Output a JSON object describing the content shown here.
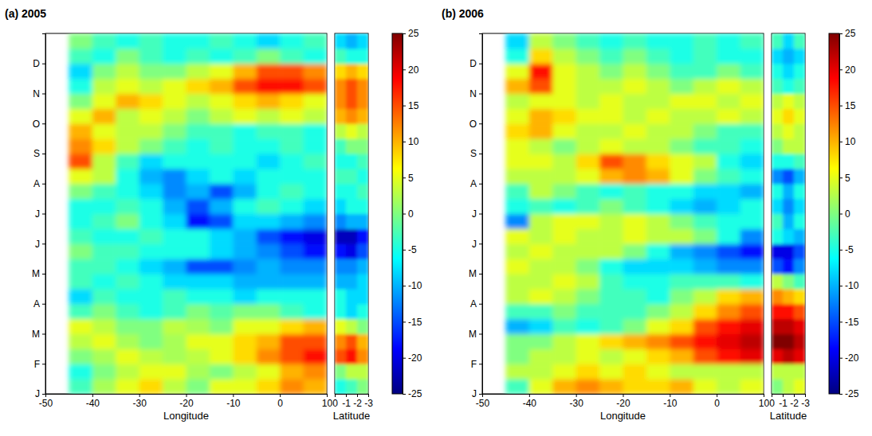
{
  "chart_data": [
    {
      "type": "heatmap",
      "title": "(a) 2005",
      "x_label": "Longitude",
      "x": [
        -42.5,
        -37.5,
        -32.5,
        -27.5,
        -22.5,
        -17.5,
        -12.5,
        -7.5,
        -2.5,
        2.5,
        7.5
      ],
      "y": [
        0.25,
        0.75,
        1.25,
        1.75,
        2.25,
        2.75,
        3.25,
        3.75,
        4.25,
        4.75,
        5.25,
        5.75,
        6.25,
        6.75,
        7.25,
        7.75,
        8.25,
        8.75,
        9.25,
        9.75,
        10.25,
        10.75,
        11.25,
        11.75
      ],
      "xlim": [
        -50,
        10
      ],
      "xticks": [
        -50,
        -40,
        -30,
        -20,
        -10,
        0,
        10
      ],
      "ylim": [
        0,
        12
      ],
      "yticks": [
        {
          "value": 0,
          "label": "J"
        },
        {
          "value": 1,
          "label": "F"
        },
        {
          "value": 2,
          "label": "M"
        },
        {
          "value": 3,
          "label": "A"
        },
        {
          "value": 4,
          "label": "M"
        },
        {
          "value": 5,
          "label": "J"
        },
        {
          "value": 6,
          "label": "J"
        },
        {
          "value": 7,
          "label": "A"
        },
        {
          "value": 8,
          "label": "S"
        },
        {
          "value": 9,
          "label": "O"
        },
        {
          "value": 10,
          "label": "N"
        },
        {
          "value": 11,
          "label": "D"
        }
      ],
      "cells": [
        [
          -3,
          2,
          5,
          8,
          3,
          0,
          5,
          5,
          8,
          12,
          10
        ],
        [
          -5,
          0,
          3,
          5,
          5,
          2,
          0,
          3,
          5,
          10,
          12
        ],
        [
          0,
          2,
          5,
          3,
          2,
          3,
          5,
          8,
          12,
          15,
          18
        ],
        [
          3,
          5,
          2,
          0,
          2,
          5,
          5,
          8,
          10,
          15,
          15
        ],
        [
          5,
          3,
          0,
          0,
          3,
          2,
          0,
          5,
          5,
          8,
          10
        ],
        [
          -3,
          0,
          -3,
          -5,
          -3,
          0,
          -2,
          0,
          0,
          -3,
          -5
        ],
        [
          -8,
          -3,
          -5,
          -5,
          -3,
          -5,
          -5,
          -8,
          -5,
          -5,
          -5
        ],
        [
          -3,
          -5,
          -3,
          -5,
          -8,
          -8,
          -8,
          -10,
          -10,
          -10,
          -10
        ],
        [
          -3,
          -3,
          -5,
          -8,
          -10,
          -15,
          -15,
          -12,
          -10,
          -12,
          -12
        ],
        [
          0,
          -3,
          -3,
          -5,
          -5,
          -5,
          -8,
          -10,
          -12,
          -15,
          -18
        ],
        [
          -3,
          -5,
          -5,
          -3,
          -5,
          -5,
          -8,
          -10,
          -15,
          -18,
          -20
        ],
        [
          -5,
          -3,
          0,
          -5,
          -8,
          -18,
          -15,
          -8,
          -8,
          -10,
          -12
        ],
        [
          -5,
          -5,
          -3,
          -5,
          -10,
          -15,
          -10,
          -5,
          -3,
          -5,
          -8
        ],
        [
          0,
          -3,
          -5,
          -8,
          -12,
          -10,
          -15,
          -10,
          -5,
          -3,
          -5
        ],
        [
          5,
          3,
          -5,
          -10,
          -12,
          -8,
          -5,
          -8,
          -5,
          -5,
          -5
        ],
        [
          15,
          3,
          -3,
          -8,
          -5,
          -5,
          -5,
          -5,
          -8,
          -5,
          -3
        ],
        [
          12,
          8,
          3,
          0,
          -3,
          -5,
          -3,
          -5,
          -5,
          -3,
          -5
        ],
        [
          10,
          5,
          3,
          3,
          0,
          -3,
          -3,
          -5,
          -3,
          -3,
          -5
        ],
        [
          5,
          10,
          3,
          5,
          3,
          0,
          3,
          5,
          3,
          5,
          3
        ],
        [
          0,
          5,
          10,
          8,
          5,
          3,
          5,
          8,
          10,
          8,
          5
        ],
        [
          -5,
          3,
          5,
          3,
          5,
          8,
          10,
          15,
          18,
          18,
          15
        ],
        [
          -8,
          0,
          3,
          0,
          0,
          3,
          5,
          10,
          15,
          15,
          12
        ],
        [
          -3,
          -5,
          0,
          -3,
          -5,
          -3,
          -5,
          -3,
          0,
          -3,
          -5
        ],
        [
          0,
          -3,
          -5,
          -3,
          -5,
          -5,
          -3,
          -5,
          -8,
          -5,
          -3
        ]
      ],
      "inset": {
        "type": "heatmap",
        "x_label": "Latitude",
        "x": [
          -0.5,
          -1.5,
          -2.5
        ],
        "xlim": [
          0,
          -3
        ],
        "xticks": [
          0,
          -1,
          -2,
          -3
        ],
        "cells": [
          [
            -5,
            -3,
            0
          ],
          [
            0,
            3,
            3
          ],
          [
            15,
            18,
            12
          ],
          [
            12,
            15,
            10
          ],
          [
            5,
            3,
            0
          ],
          [
            -5,
            -8,
            -5
          ],
          [
            -5,
            -8,
            -8
          ],
          [
            -10,
            -10,
            -8
          ],
          [
            -12,
            -12,
            -10
          ],
          [
            -18,
            -20,
            -15
          ],
          [
            -22,
            -22,
            -18
          ],
          [
            -12,
            -10,
            -10
          ],
          [
            -8,
            -5,
            -5
          ],
          [
            -5,
            -5,
            -3
          ],
          [
            -3,
            -3,
            -5
          ],
          [
            -5,
            -5,
            -3
          ],
          [
            -3,
            0,
            0
          ],
          [
            3,
            5,
            3
          ],
          [
            10,
            12,
            10
          ],
          [
            12,
            15,
            12
          ],
          [
            12,
            15,
            12
          ],
          [
            8,
            10,
            8
          ],
          [
            -3,
            -5,
            -5
          ],
          [
            -8,
            -10,
            -8
          ]
        ]
      },
      "colorbar": {
        "range": [
          -25,
          25
        ],
        "ticks": [
          -25,
          -20,
          -15,
          -10,
          -5,
          0,
          5,
          10,
          15,
          20,
          25
        ]
      }
    },
    {
      "type": "heatmap",
      "title": "(b) 2006",
      "x_label": "Longitude",
      "x": [
        -42.5,
        -37.5,
        -32.5,
        -27.5,
        -22.5,
        -17.5,
        -12.5,
        -7.5,
        -2.5,
        2.5,
        7.5
      ],
      "y": [
        0.25,
        0.75,
        1.25,
        1.75,
        2.25,
        2.75,
        3.25,
        3.75,
        4.25,
        4.75,
        5.25,
        5.75,
        6.25,
        6.75,
        7.25,
        7.75,
        8.25,
        8.75,
        9.25,
        9.75,
        10.25,
        10.75,
        11.25,
        11.75
      ],
      "xlim": [
        -50,
        10
      ],
      "xticks": [
        -50,
        -40,
        -30,
        -20,
        -10,
        0,
        10
      ],
      "ylim": [
        0,
        12
      ],
      "yticks": [
        {
          "value": 0,
          "label": "J"
        },
        {
          "value": 1,
          "label": "F"
        },
        {
          "value": 2,
          "label": "M"
        },
        {
          "value": 3,
          "label": "A"
        },
        {
          "value": 4,
          "label": "M"
        },
        {
          "value": 5,
          "label": "J"
        },
        {
          "value": 6,
          "label": "J"
        },
        {
          "value": 7,
          "label": "A"
        },
        {
          "value": 8,
          "label": "S"
        },
        {
          "value": 9,
          "label": "O"
        },
        {
          "value": 10,
          "label": "N"
        },
        {
          "value": 11,
          "label": "D"
        }
      ],
      "cells": [
        [
          -3,
          5,
          10,
          12,
          10,
          8,
          8,
          10,
          5,
          3,
          5
        ],
        [
          3,
          3,
          5,
          8,
          5,
          8,
          5,
          3,
          3,
          3,
          3
        ],
        [
          0,
          3,
          3,
          5,
          3,
          5,
          8,
          10,
          15,
          18,
          20
        ],
        [
          0,
          0,
          3,
          5,
          8,
          10,
          12,
          15,
          18,
          20,
          22
        ],
        [
          -10,
          -8,
          -3,
          -5,
          -3,
          0,
          5,
          8,
          15,
          18,
          20
        ],
        [
          -3,
          -3,
          0,
          -3,
          -3,
          -3,
          0,
          3,
          8,
          12,
          15
        ],
        [
          3,
          5,
          3,
          0,
          -3,
          -3,
          -5,
          0,
          3,
          8,
          10
        ],
        [
          3,
          3,
          5,
          3,
          -3,
          -5,
          -5,
          -3,
          -3,
          -3,
          -5
        ],
        [
          5,
          3,
          3,
          0,
          -5,
          -8,
          -8,
          -8,
          -10,
          -12,
          -12
        ],
        [
          3,
          5,
          3,
          3,
          3,
          0,
          -5,
          -10,
          -12,
          -15,
          -18
        ],
        [
          5,
          3,
          5,
          3,
          3,
          5,
          3,
          3,
          0,
          -5,
          -12
        ],
        [
          -12,
          3,
          5,
          5,
          3,
          5,
          3,
          0,
          -3,
          -5,
          -5
        ],
        [
          -5,
          -3,
          -5,
          -3,
          0,
          -3,
          -5,
          -8,
          -10,
          -8,
          -5
        ],
        [
          -3,
          3,
          0,
          -3,
          -5,
          -3,
          -5,
          -5,
          -8,
          -8,
          -10
        ],
        [
          3,
          3,
          3,
          5,
          10,
          12,
          10,
          5,
          0,
          -3,
          -5
        ],
        [
          5,
          5,
          3,
          8,
          15,
          12,
          8,
          5,
          3,
          -5,
          -8
        ],
        [
          5,
          3,
          0,
          3,
          5,
          3,
          3,
          0,
          -3,
          -3,
          -5
        ],
        [
          8,
          10,
          5,
          3,
          3,
          5,
          3,
          3,
          0,
          -3,
          -3
        ],
        [
          5,
          10,
          8,
          5,
          5,
          3,
          5,
          3,
          3,
          5,
          3
        ],
        [
          3,
          5,
          5,
          3,
          5,
          3,
          3,
          5,
          5,
          3,
          5
        ],
        [
          10,
          15,
          5,
          3,
          3,
          5,
          3,
          0,
          3,
          5,
          3
        ],
        [
          5,
          18,
          5,
          3,
          0,
          3,
          0,
          -3,
          -3,
          0,
          -3
        ],
        [
          -5,
          8,
          3,
          0,
          -3,
          0,
          -3,
          -5,
          -3,
          -5,
          -5
        ],
        [
          -8,
          3,
          0,
          -3,
          -5,
          -3,
          -5,
          -5,
          -3,
          -5,
          -3
        ]
      ],
      "inset": {
        "type": "heatmap",
        "x_label": "Latitude",
        "x": [
          -0.5,
          -1.5,
          -2.5
        ],
        "xlim": [
          0,
          -3
        ],
        "xticks": [
          0,
          -1,
          -2,
          -3
        ],
        "cells": [
          [
            0,
            3,
            5
          ],
          [
            3,
            3,
            3
          ],
          [
            20,
            22,
            20
          ],
          [
            25,
            25,
            22
          ],
          [
            22,
            22,
            20
          ],
          [
            18,
            18,
            15
          ],
          [
            12,
            10,
            8
          ],
          [
            3,
            0,
            -3
          ],
          [
            -15,
            -18,
            -12
          ],
          [
            -20,
            -20,
            -15
          ],
          [
            -5,
            -8,
            -10
          ],
          [
            -3,
            -10,
            -5
          ],
          [
            -8,
            -12,
            -8
          ],
          [
            -5,
            -10,
            -5
          ],
          [
            -12,
            -15,
            -10
          ],
          [
            -5,
            -5,
            -3
          ],
          [
            0,
            3,
            3
          ],
          [
            3,
            5,
            3
          ],
          [
            5,
            8,
            5
          ],
          [
            3,
            5,
            3
          ],
          [
            -3,
            -5,
            -3
          ],
          [
            -5,
            -8,
            -5
          ],
          [
            -8,
            -10,
            -8
          ],
          [
            -3,
            -8,
            -3
          ]
        ]
      },
      "colorbar": {
        "range": [
          -25,
          25
        ],
        "ticks": [
          -25,
          -20,
          -15,
          -10,
          -5,
          0,
          5,
          10,
          15,
          20,
          25
        ]
      }
    }
  ]
}
